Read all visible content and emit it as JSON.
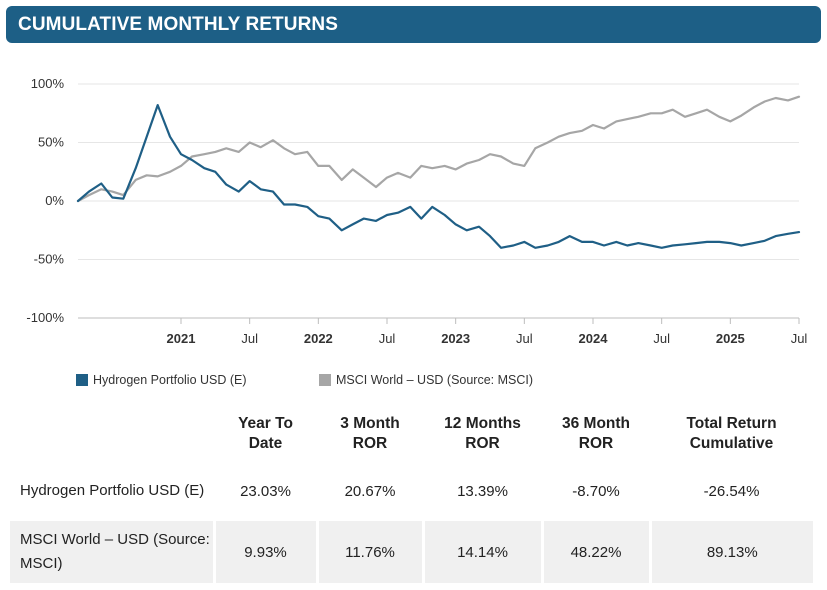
{
  "header": {
    "title": "CUMULATIVE MONTHLY RETURNS"
  },
  "chart_data": {
    "type": "line",
    "title": "CUMULATIVE MONTHLY RETURNS",
    "y_ticks": [
      "100%",
      "50%",
      "0%",
      "-50%",
      "-100%"
    ],
    "ylim": [
      -100,
      100
    ],
    "x_range": [
      2020.25,
      2025.5
    ],
    "x_ticks": [
      {
        "label": "2021",
        "x": 2021.0,
        "bold": true
      },
      {
        "label": "Jul",
        "x": 2021.5,
        "bold": false
      },
      {
        "label": "2022",
        "x": 2022.0,
        "bold": true
      },
      {
        "label": "Jul",
        "x": 2022.5,
        "bold": false
      },
      {
        "label": "2023",
        "x": 2023.0,
        "bold": true
      },
      {
        "label": "Jul",
        "x": 2023.5,
        "bold": false
      },
      {
        "label": "2024",
        "x": 2024.0,
        "bold": true
      },
      {
        "label": "Jul",
        "x": 2024.5,
        "bold": false
      },
      {
        "label": "2025",
        "x": 2025.0,
        "bold": true
      },
      {
        "label": "Jul",
        "x": 2025.5,
        "bold": false
      }
    ],
    "series": [
      {
        "name": "Hydrogen Portfolio USD (E)",
        "color": "#1f5f86",
        "points": [
          [
            2020.25,
            0
          ],
          [
            2020.33,
            8
          ],
          [
            2020.42,
            15
          ],
          [
            2020.5,
            3
          ],
          [
            2020.58,
            2
          ],
          [
            2020.67,
            28
          ],
          [
            2020.75,
            55
          ],
          [
            2020.83,
            82
          ],
          [
            2020.92,
            55
          ],
          [
            2021.0,
            40
          ],
          [
            2021.08,
            35
          ],
          [
            2021.17,
            28
          ],
          [
            2021.25,
            25
          ],
          [
            2021.33,
            14
          ],
          [
            2021.42,
            8
          ],
          [
            2021.5,
            17
          ],
          [
            2021.58,
            10
          ],
          [
            2021.67,
            8
          ],
          [
            2021.75,
            -3
          ],
          [
            2021.83,
            -3
          ],
          [
            2021.92,
            -5
          ],
          [
            2022.0,
            -13
          ],
          [
            2022.08,
            -15
          ],
          [
            2022.17,
            -25
          ],
          [
            2022.25,
            -20
          ],
          [
            2022.33,
            -15
          ],
          [
            2022.42,
            -17
          ],
          [
            2022.5,
            -12
          ],
          [
            2022.58,
            -10
          ],
          [
            2022.67,
            -5
          ],
          [
            2022.75,
            -15
          ],
          [
            2022.83,
            -5
          ],
          [
            2022.92,
            -12
          ],
          [
            2023.0,
            -20
          ],
          [
            2023.08,
            -25
          ],
          [
            2023.17,
            -22
          ],
          [
            2023.25,
            -30
          ],
          [
            2023.33,
            -40
          ],
          [
            2023.42,
            -38
          ],
          [
            2023.5,
            -35
          ],
          [
            2023.58,
            -40
          ],
          [
            2023.67,
            -38
          ],
          [
            2023.75,
            -35
          ],
          [
            2023.83,
            -30
          ],
          [
            2023.92,
            -35
          ],
          [
            2024.0,
            -35
          ],
          [
            2024.08,
            -38
          ],
          [
            2024.17,
            -35
          ],
          [
            2024.25,
            -38
          ],
          [
            2024.33,
            -36
          ],
          [
            2024.42,
            -38
          ],
          [
            2024.5,
            -40
          ],
          [
            2024.58,
            -38
          ],
          [
            2024.67,
            -37
          ],
          [
            2024.75,
            -36
          ],
          [
            2024.83,
            -35
          ],
          [
            2024.92,
            -35
          ],
          [
            2025.0,
            -36
          ],
          [
            2025.08,
            -38
          ],
          [
            2025.17,
            -36
          ],
          [
            2025.25,
            -34
          ],
          [
            2025.33,
            -30
          ],
          [
            2025.42,
            -28
          ],
          [
            2025.5,
            -26.54
          ]
        ]
      },
      {
        "name": "MSCI World – USD (Source: MSCI)",
        "color": "#a6a6a6",
        "points": [
          [
            2020.25,
            0
          ],
          [
            2020.33,
            5
          ],
          [
            2020.42,
            10
          ],
          [
            2020.5,
            8
          ],
          [
            2020.58,
            5
          ],
          [
            2020.67,
            18
          ],
          [
            2020.75,
            22
          ],
          [
            2020.83,
            21
          ],
          [
            2020.92,
            25
          ],
          [
            2021.0,
            30
          ],
          [
            2021.08,
            38
          ],
          [
            2021.17,
            40
          ],
          [
            2021.25,
            42
          ],
          [
            2021.33,
            45
          ],
          [
            2021.42,
            42
          ],
          [
            2021.5,
            50
          ],
          [
            2021.58,
            46
          ],
          [
            2021.67,
            52
          ],
          [
            2021.75,
            45
          ],
          [
            2021.83,
            40
          ],
          [
            2021.92,
            42
          ],
          [
            2022.0,
            30
          ],
          [
            2022.08,
            30
          ],
          [
            2022.17,
            18
          ],
          [
            2022.25,
            27
          ],
          [
            2022.33,
            20
          ],
          [
            2022.42,
            12
          ],
          [
            2022.5,
            20
          ],
          [
            2022.58,
            24
          ],
          [
            2022.67,
            20
          ],
          [
            2022.75,
            30
          ],
          [
            2022.83,
            28
          ],
          [
            2022.92,
            30
          ],
          [
            2023.0,
            27
          ],
          [
            2023.08,
            32
          ],
          [
            2023.17,
            35
          ],
          [
            2023.25,
            40
          ],
          [
            2023.33,
            38
          ],
          [
            2023.42,
            32
          ],
          [
            2023.5,
            30
          ],
          [
            2023.58,
            45
          ],
          [
            2023.67,
            50
          ],
          [
            2023.75,
            55
          ],
          [
            2023.83,
            58
          ],
          [
            2023.92,
            60
          ],
          [
            2024.0,
            65
          ],
          [
            2024.08,
            62
          ],
          [
            2024.17,
            68
          ],
          [
            2024.25,
            70
          ],
          [
            2024.33,
            72
          ],
          [
            2024.42,
            75
          ],
          [
            2024.5,
            75
          ],
          [
            2024.58,
            78
          ],
          [
            2024.67,
            72
          ],
          [
            2024.75,
            75
          ],
          [
            2024.83,
            78
          ],
          [
            2024.92,
            72
          ],
          [
            2025.0,
            68
          ],
          [
            2025.08,
            73
          ],
          [
            2025.17,
            80
          ],
          [
            2025.25,
            85
          ],
          [
            2025.33,
            88
          ],
          [
            2025.42,
            86
          ],
          [
            2025.5,
            89.13
          ]
        ]
      }
    ]
  },
  "legend": [
    {
      "label": "Hydrogen Portfolio USD (E)",
      "color": "#1f5f86"
    },
    {
      "label": "MSCI World – USD (Source: MSCI)",
      "color": "#a6a6a6"
    }
  ],
  "table": {
    "headers": [
      "Year To\nDate",
      "3 Month\nROR",
      "12 Months\nROR",
      "36 Month\nROR",
      "Total Return\nCumulative"
    ],
    "rows": [
      {
        "label": "Hydrogen Portfolio USD (E)",
        "values": [
          "23.03%",
          "20.67%",
          "13.39%",
          "-8.70%",
          "-26.54%"
        ]
      },
      {
        "label": "MSCI World – USD (Source: MSCI)",
        "values": [
          "9.93%",
          "11.76%",
          "14.14%",
          "48.22%",
          "89.13%"
        ]
      }
    ]
  }
}
